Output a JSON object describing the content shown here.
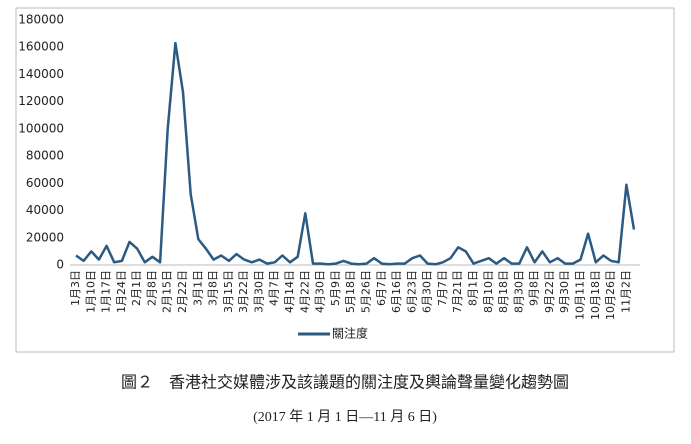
{
  "chart_data": {
    "type": "line",
    "caption": "圖２　香港社交媒體涉及該議題的關注度及輿論聲量變化趨勢圖",
    "subcaption": "(2017 年 1 月 1 日—11 月 6 日)",
    "categories": [
      "1月3日",
      null,
      "1月10日",
      null,
      "1月17日",
      null,
      "1月24日",
      null,
      "2月1日",
      null,
      "2月8日",
      null,
      "2月15日",
      null,
      "2月22日",
      null,
      "3月1日",
      null,
      "3月8日",
      null,
      "3月15日",
      null,
      "3月22日",
      null,
      "3月30日",
      null,
      "4月7日",
      null,
      "4月14日",
      null,
      "4月22日",
      null,
      "4月30日",
      null,
      "5月9日",
      null,
      "5月18日",
      null,
      "5月26日",
      null,
      "6月7日",
      null,
      "6月16日",
      null,
      "6月23日",
      null,
      "6月30日",
      null,
      "7月7日",
      null,
      "7月21日",
      null,
      "8月1日",
      null,
      "8月10日",
      null,
      "8月18日",
      null,
      "8月30日",
      null,
      "9月8日",
      null,
      "9月22日",
      null,
      "9月30日",
      null,
      "10月11日",
      null,
      "10月18日",
      null,
      "10月26日",
      null,
      "11月2日",
      null
    ],
    "series": [
      {
        "name": "關注度",
        "color": "#2b5a83",
        "values": [
          7000,
          3000,
          10000,
          4000,
          14000,
          2000,
          3000,
          17000,
          12000,
          2000,
          6000,
          2000,
          100000,
          163000,
          127000,
          52000,
          19000,
          12000,
          4000,
          7000,
          3000,
          8000,
          4000,
          2000,
          4000,
          1000,
          2000,
          7000,
          2000,
          6000,
          38000,
          1000,
          1000,
          500,
          1000,
          3000,
          1000,
          500,
          1000,
          5000,
          1000,
          500,
          1000,
          1000,
          5000,
          7000,
          1000,
          500,
          2000,
          5000,
          13000,
          10000,
          1000,
          3000,
          5000,
          1000,
          5000,
          1000,
          1000,
          13000,
          2000,
          10000,
          2000,
          5000,
          1000,
          1000,
          4000,
          23000,
          2000,
          7000,
          3000,
          2000,
          59000,
          26000
        ]
      }
    ],
    "ylim": [
      0,
      180000
    ],
    "yticks": [
      0,
      20000,
      40000,
      60000,
      80000,
      100000,
      120000,
      140000,
      160000,
      180000
    ],
    "grid": false,
    "legend": "bottom"
  }
}
